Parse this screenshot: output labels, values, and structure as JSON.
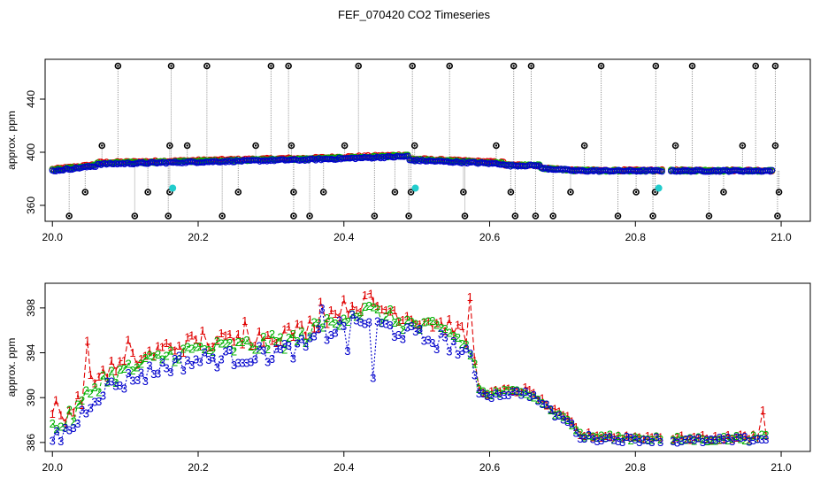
{
  "title": "FEF_070420  CO2 Timeseries",
  "colors": {
    "s1": "#e00000",
    "s2": "#00b000",
    "s3": "#0000cc",
    "ref": "#000000",
    "cyan": "#22cccc",
    "guide": "#999999"
  },
  "chart_data": [
    {
      "type": "scatter",
      "title": "",
      "ylabel": "approx. ppm",
      "xlabel": "",
      "xlim": [
        19.99,
        21.04
      ],
      "ylim": [
        348,
        470
      ],
      "xticks": [
        20.0,
        20.2,
        20.4,
        20.6,
        20.8,
        21.0
      ],
      "xtick_labels": [
        "20.0",
        "20.2",
        "20.4",
        "20.6",
        "20.8",
        "21.0"
      ],
      "yticks": [
        360,
        400,
        440
      ],
      "ytick_labels": [
        "360",
        "400",
        "440"
      ],
      "series_points": {
        "cyan": [
          [
            20.165,
            373
          ],
          [
            20.498,
            373
          ],
          [
            20.832,
            373
          ]
        ],
        "spike_high": [
          20.09,
          20.163,
          20.212,
          20.3,
          20.324,
          20.42,
          20.494,
          20.545,
          20.633,
          20.657,
          20.753,
          20.828,
          20.878,
          20.965,
          20.992
        ],
        "spike_low": [
          20.023,
          20.113,
          20.159,
          20.233,
          20.331,
          20.353,
          20.442,
          20.489,
          20.566,
          20.635,
          20.663,
          20.687,
          20.776,
          20.824,
          20.901,
          20.995
        ],
        "mid_high": [
          20.068,
          20.161,
          20.185,
          20.279,
          20.328,
          20.401,
          20.497,
          20.609,
          20.73,
          20.855,
          20.947,
          20.992
        ],
        "mid_low": [
          20.045,
          20.131,
          20.161,
          20.255,
          20.331,
          20.372,
          20.47,
          20.492,
          20.564,
          20.629,
          20.711,
          20.801,
          20.827,
          20.921,
          20.997
        ]
      },
      "spike_values": {
        "high": 465,
        "mid_high": 405,
        "mid_low": 370,
        "low": 352
      }
    },
    {
      "type": "line",
      "title": "",
      "ylabel": "approx. ppm",
      "xlabel": "",
      "xlim": [
        19.99,
        21.04
      ],
      "ylim": [
        385.2,
        400.2
      ],
      "xticks": [
        20.0,
        20.2,
        20.4,
        20.6,
        20.8,
        21.0
      ],
      "xtick_labels": [
        "20.0",
        "20.2",
        "20.4",
        "20.6",
        "20.8",
        "21.0"
      ],
      "yticks": [
        386,
        390,
        394,
        398
      ],
      "ytick_labels": [
        "386",
        "390",
        "394",
        "398"
      ],
      "series": [
        {
          "name": "1",
          "marker": "1"
        },
        {
          "name": "2",
          "marker": "2"
        },
        {
          "name": "3",
          "marker": "3"
        }
      ],
      "gap": [
        20.84,
        20.85
      ],
      "profile": [
        [
          20.0,
          386.5
        ],
        [
          20.01,
          386.6
        ],
        [
          20.02,
          387.1
        ],
        [
          20.03,
          387.6
        ],
        [
          20.04,
          388.5
        ],
        [
          20.05,
          389.6
        ],
        [
          20.07,
          390.8
        ],
        [
          20.1,
          391.5
        ],
        [
          20.13,
          392.2
        ],
        [
          20.16,
          393.0
        ],
        [
          20.2,
          393.4
        ],
        [
          20.25,
          393.6
        ],
        [
          20.3,
          394.0
        ],
        [
          20.34,
          394.4
        ],
        [
          20.37,
          395.6
        ],
        [
          20.4,
          396.5
        ],
        [
          20.43,
          396.9
        ],
        [
          20.46,
          396.3
        ],
        [
          20.5,
          395.5
        ],
        [
          20.55,
          394.8
        ],
        [
          20.575,
          393.2
        ],
        [
          20.585,
          390.6
        ],
        [
          20.6,
          390.2
        ],
        [
          20.62,
          390.4
        ],
        [
          20.65,
          390.5
        ],
        [
          20.665,
          389.9
        ],
        [
          20.69,
          388.5
        ],
        [
          20.71,
          387.8
        ],
        [
          20.725,
          386.5
        ],
        [
          20.75,
          386.4
        ],
        [
          20.8,
          386.3
        ],
        [
          20.84,
          386.3
        ],
        [
          20.85,
          386.2
        ],
        [
          20.9,
          386.2
        ],
        [
          20.95,
          386.3
        ],
        [
          20.985,
          386.4
        ]
      ],
      "offsets": {
        "1": 1.6,
        "2": 0.9,
        "3": 0.0
      },
      "spikes_1": [
        [
          20.005,
          389.8
        ],
        [
          20.048,
          395.1
        ],
        [
          20.104,
          395.2
        ],
        [
          20.206,
          396.0
        ],
        [
          20.264,
          396.9
        ],
        [
          20.368,
          398.6
        ],
        [
          20.437,
          399.3
        ],
        [
          20.573,
          399.0
        ],
        [
          20.975,
          388.9
        ]
      ],
      "dips_3": [
        [
          20.37,
          398.0
        ],
        [
          20.44,
          391.8
        ],
        [
          20.405,
          394.2
        ],
        [
          20.117,
          391.6
        ]
      ]
    }
  ]
}
